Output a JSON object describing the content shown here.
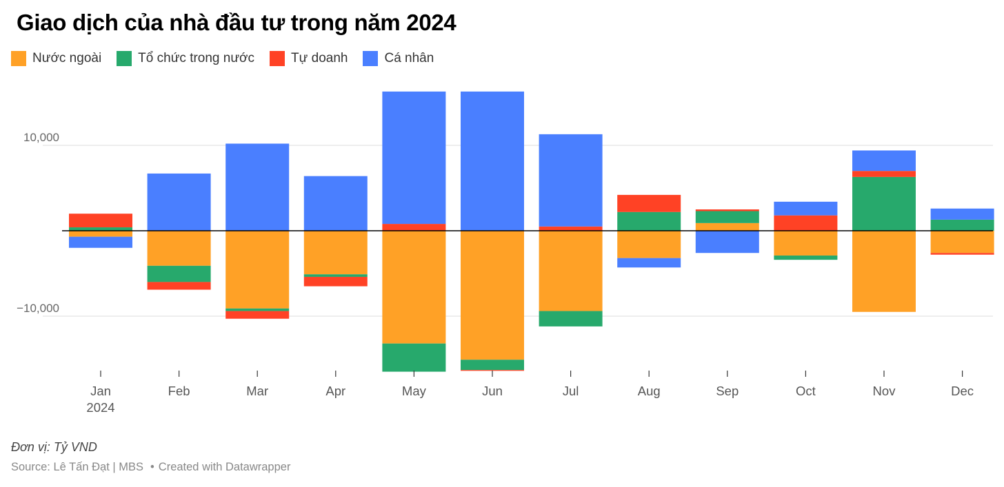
{
  "title": "Giao dịch của nhà đầu tư trong năm 2024",
  "unit_note": "Đơn vị: Tỷ VND",
  "source": {
    "text": "Source: Lê Tấn Đạt | MBS",
    "separator": "•",
    "credit": "Created with Datawrapper"
  },
  "chart_data": {
    "type": "bar",
    "stacked": true,
    "title": "Giao dịch của nhà đầu tư trong năm 2024",
    "categories": [
      "Jan",
      "Feb",
      "Mar",
      "Apr",
      "May",
      "Jun",
      "Jul",
      "Aug",
      "Sep",
      "Oct",
      "Nov",
      "Dec"
    ],
    "category_sublabels": [
      "2024",
      "",
      "",
      "",
      "",
      "",
      "",
      "",
      "",
      "",
      "",
      ""
    ],
    "series": [
      {
        "name": "Nước ngoài",
        "color": "#ffa126",
        "values": [
          -700,
          -4100,
          -9100,
          -5100,
          -13200,
          -15100,
          -9400,
          -3200,
          900,
          -2900,
          -9500,
          -2600
        ]
      },
      {
        "name": "Tổ chức trong nước",
        "color": "#27a96c",
        "values": [
          400,
          -1900,
          -300,
          -300,
          -3300,
          -1200,
          -1800,
          2200,
          1400,
          -500,
          6300,
          1300
        ]
      },
      {
        "name": "Tự doanh",
        "color": "#ff4225",
        "values": [
          1600,
          -900,
          -900,
          -1100,
          800,
          -100,
          500,
          2000,
          200,
          1800,
          700,
          -200
        ]
      },
      {
        "name": "Cá nhân",
        "color": "#4a7fff",
        "values": [
          -1300,
          6700,
          10200,
          6400,
          15500,
          16300,
          10800,
          -1100,
          -2600,
          1600,
          2400,
          1300
        ]
      }
    ],
    "ylim": [
      -16500,
      18000
    ],
    "yticks": [
      10000,
      -10000
    ],
    "ytick_labels": [
      "10,000",
      "−10,000"
    ],
    "grid": true,
    "zero_line": true,
    "xlabel": "",
    "ylabel": "",
    "legend_position": "top-left"
  }
}
